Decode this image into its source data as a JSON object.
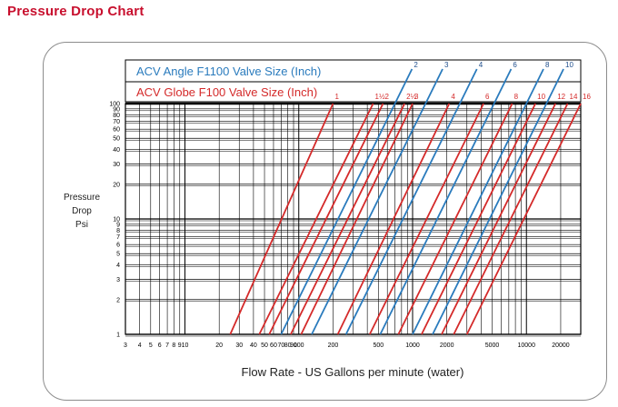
{
  "page": {
    "title": "Pressure Drop Chart"
  },
  "colors": {
    "angle": "#2a7bbd",
    "globe": "#d42a2a",
    "title": "#c8102e",
    "grid": "#000000"
  },
  "chart_data": {
    "type": "line",
    "title": "Pressure Drop Chart",
    "xlabel": "Flow Rate - US Gallons per minute (water)",
    "ylabel": [
      "Pressure",
      "Drop",
      "Psi"
    ],
    "x_scale": "log",
    "y_scale": "log",
    "xlim": [
      3,
      30000
    ],
    "ylim": [
      1,
      100
    ],
    "grid": true,
    "legend": [
      {
        "name": "ACV Angle F1100  Valve Size (Inch)",
        "color": "#2a7bbd"
      },
      {
        "name": "ACV Globe F100  Valve Size (Inch)",
        "color": "#d42a2a"
      }
    ],
    "x_ticks": [
      {
        "v": 3,
        "t": "3"
      },
      {
        "v": 4,
        "t": "4"
      },
      {
        "v": 5,
        "t": "5"
      },
      {
        "v": 6,
        "t": "6"
      },
      {
        "v": 7,
        "t": "7"
      },
      {
        "v": 8,
        "t": "8"
      },
      {
        "v": 9,
        "t": "9"
      },
      {
        "v": 10,
        "t": "10"
      },
      {
        "v": 20,
        "t": "20"
      },
      {
        "v": 30,
        "t": "30"
      },
      {
        "v": 40,
        "t": "40"
      },
      {
        "v": 50,
        "t": "50"
      },
      {
        "v": 60,
        "t": "60"
      },
      {
        "v": 70,
        "t": "70"
      },
      {
        "v": 80,
        "t": "80"
      },
      {
        "v": 90,
        "t": "90"
      },
      {
        "v": 100,
        "t": "100"
      },
      {
        "v": 200,
        "t": "200"
      },
      {
        "v": 500,
        "t": "500"
      },
      {
        "v": 1000,
        "t": "1000"
      },
      {
        "v": 2000,
        "t": "2000"
      },
      {
        "v": 5000,
        "t": "5000"
      },
      {
        "v": 10000,
        "t": "10000"
      },
      {
        "v": 20000,
        "t": "20000"
      }
    ],
    "y_ticks": [
      1,
      2,
      3,
      4,
      5,
      6,
      7,
      8,
      9,
      10,
      20,
      30,
      40,
      50,
      60,
      70,
      80,
      90,
      100
    ],
    "series": [
      {
        "group": "globe",
        "name": "1",
        "x": [
          25,
          200
        ]
      },
      {
        "group": "globe",
        "name": "1½",
        "x": [
          45,
          450
        ]
      },
      {
        "group": "globe",
        "name": "2",
        "x": [
          55,
          550
        ]
      },
      {
        "group": "globe",
        "name": "2½",
        "x": [
          85,
          850
        ]
      },
      {
        "group": "globe",
        "name": "3",
        "x": [
          105,
          1000
        ]
      },
      {
        "group": "globe",
        "name": "4",
        "x": [
          220,
          2100
        ]
      },
      {
        "group": "globe",
        "name": "6",
        "x": [
          420,
          4200
        ]
      },
      {
        "group": "globe",
        "name": "8",
        "x": [
          750,
          7500
        ]
      },
      {
        "group": "globe",
        "name": "10",
        "x": [
          1200,
          12000
        ]
      },
      {
        "group": "globe",
        "name": "12",
        "x": [
          1800,
          18000
        ]
      },
      {
        "group": "globe",
        "name": "14",
        "x": [
          2300,
          23000
        ]
      },
      {
        "group": "globe",
        "name": "16",
        "x": [
          3000,
          30000
        ]
      },
      {
        "group": "angle",
        "name": "2",
        "x": [
          70,
          700
        ]
      },
      {
        "group": "angle",
        "name": "3",
        "x": [
          130,
          1300
        ]
      },
      {
        "group": "angle",
        "name": "4",
        "x": [
          260,
          2600
        ]
      },
      {
        "group": "angle",
        "name": "6",
        "x": [
          520,
          5200
        ]
      },
      {
        "group": "angle",
        "name": "8",
        "x": [
          1000,
          10000
        ]
      },
      {
        "group": "angle",
        "name": "10",
        "x": [
          1500,
          15000
        ]
      }
    ]
  }
}
